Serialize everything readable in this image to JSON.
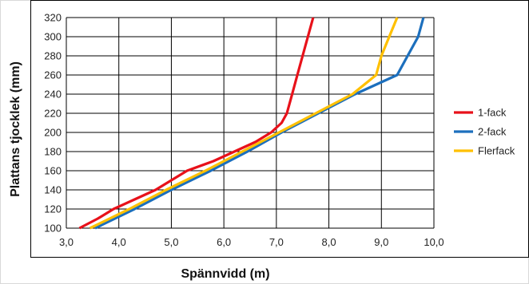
{
  "chart_data": {
    "type": "line",
    "xlabel": "Spännvidd (m)",
    "ylabel": "Plattans tjocklek (mm)",
    "xlim": [
      3.0,
      10.0
    ],
    "ylim": [
      100,
      320
    ],
    "xticks": [
      3.0,
      4.0,
      5.0,
      6.0,
      7.0,
      8.0,
      9.0,
      10.0
    ],
    "xtick_labels": [
      "3,0",
      "4,0",
      "5,0",
      "6,0",
      "7,0",
      "8,0",
      "9,0",
      "10,0"
    ],
    "yticks": [
      100,
      120,
      140,
      160,
      180,
      200,
      220,
      240,
      260,
      280,
      300,
      320
    ],
    "ytick_labels": [
      "100",
      "120",
      "140",
      "160",
      "180",
      "200",
      "220",
      "240",
      "260",
      "280",
      "300",
      "320"
    ],
    "grid": true,
    "legend_position": "right",
    "series": [
      {
        "name": "1-fack",
        "color": "#e8111a",
        "points": [
          [
            3.25,
            100
          ],
          [
            3.6,
            110
          ],
          [
            3.9,
            120
          ],
          [
            4.3,
            130
          ],
          [
            4.7,
            140
          ],
          [
            5.0,
            150
          ],
          [
            5.3,
            160
          ],
          [
            5.8,
            170
          ],
          [
            6.2,
            180
          ],
          [
            6.6,
            190
          ],
          [
            6.9,
            200
          ],
          [
            7.1,
            210
          ],
          [
            7.2,
            220
          ],
          [
            7.3,
            240
          ],
          [
            7.4,
            260
          ],
          [
            7.5,
            280
          ],
          [
            7.6,
            300
          ],
          [
            7.7,
            320
          ]
        ]
      },
      {
        "name": "2-fack",
        "color": "#1c6fbd",
        "points": [
          [
            3.55,
            100
          ],
          [
            4.3,
            120
          ],
          [
            5.0,
            140
          ],
          [
            5.75,
            160
          ],
          [
            6.45,
            180
          ],
          [
            7.1,
            200
          ],
          [
            7.8,
            220
          ],
          [
            8.5,
            240
          ],
          [
            9.3,
            260
          ],
          [
            9.5,
            280
          ],
          [
            9.7,
            300
          ],
          [
            9.8,
            320
          ]
        ]
      },
      {
        "name": "Flerfack",
        "color": "#ffc000",
        "points": [
          [
            3.45,
            100
          ],
          [
            4.2,
            120
          ],
          [
            4.9,
            140
          ],
          [
            5.65,
            160
          ],
          [
            6.35,
            180
          ],
          [
            7.05,
            200
          ],
          [
            7.75,
            220
          ],
          [
            8.45,
            240
          ],
          [
            8.9,
            260
          ],
          [
            9.0,
            280
          ],
          [
            9.15,
            300
          ],
          [
            9.3,
            320
          ]
        ]
      }
    ]
  }
}
